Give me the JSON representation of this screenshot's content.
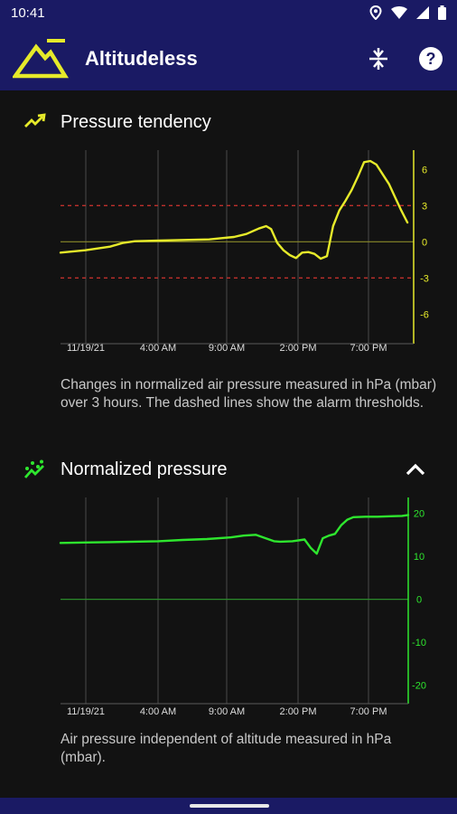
{
  "status_bar": {
    "time": "10:41",
    "icons": [
      "location-icon",
      "wifi-icon",
      "signal-icon",
      "battery-icon"
    ]
  },
  "app_bar": {
    "title": "Altitudeless",
    "actions": [
      "calibrate-icon",
      "help-icon"
    ],
    "color": "#1a1a64",
    "logo_color": "#e6ea2a"
  },
  "tendency": {
    "title": "Pressure tendency",
    "description": "Changes in normalized air pressure measured in hPa (mbar) over 3 hours. The dashed lines show the alarm thresholds.",
    "color": "#e6ea2a",
    "threshold_color": "#c0302c"
  },
  "normalized": {
    "title": "Normalized pressure",
    "description": "Air pressure independent of altitude measured in hPa (mbar).",
    "color": "#2ee62e"
  },
  "chart_data": [
    {
      "type": "line",
      "title": "Pressure tendency",
      "x_tick_labels": [
        "11/19/21",
        "4:00 AM",
        "9:00 AM",
        "2:00 PM",
        "7:00 PM"
      ],
      "y_tick_labels": [
        "6",
        "3",
        "0",
        "-3",
        "-6"
      ],
      "y_ticks": [
        6,
        3,
        0,
        -3,
        -6
      ],
      "ylim": [
        -8,
        7
      ],
      "xlim": [
        0,
        28.5
      ],
      "thresholds": [
        3,
        -3
      ],
      "grid": "vertical",
      "series": [
        {
          "x": [
            0,
            2,
            4,
            5,
            6,
            8,
            10,
            12,
            13,
            14,
            15,
            16,
            16.6,
            17,
            17.5,
            18,
            18.5,
            19,
            19.5,
            20,
            20.5,
            21,
            21.5,
            22,
            22.5,
            23,
            23.5,
            24,
            24.5,
            25,
            25.5,
            26,
            26.5,
            27,
            27.5,
            28
          ],
          "y": [
            -0.9,
            -0.7,
            -0.4,
            -0.1,
            0.05,
            0.1,
            0.15,
            0.2,
            0.3,
            0.4,
            0.65,
            1.1,
            1.3,
            1.05,
            -0.1,
            -0.7,
            -1.1,
            -1.35,
            -0.9,
            -0.85,
            -1.0,
            -1.4,
            -1.2,
            1.3,
            2.6,
            3.4,
            4.3,
            5.4,
            6.6,
            6.7,
            6.4,
            5.6,
            4.8,
            3.7,
            2.6,
            1.6
          ]
        }
      ]
    },
    {
      "type": "line",
      "title": "Normalized pressure",
      "x_tick_labels": [
        "11/19/21",
        "4:00 AM",
        "9:00 AM",
        "2:00 PM",
        "7:00 PM"
      ],
      "y_tick_labels": [
        "20",
        "10",
        "0",
        "-10",
        "-20"
      ],
      "y_ticks": [
        20,
        10,
        0,
        -10,
        -20
      ],
      "ylim": [
        -23,
        22
      ],
      "xlim": [
        0,
        28.5
      ],
      "grid": "vertical",
      "series": [
        {
          "x": [
            0,
            2,
            4,
            6,
            8,
            10,
            12,
            14,
            15,
            16,
            17,
            17.5,
            18,
            19,
            20,
            20.5,
            21,
            21.5,
            22,
            22.5,
            23,
            23.5,
            24,
            25,
            26,
            27,
            28,
            28.5
          ],
          "y": [
            13.1,
            13.2,
            13.3,
            13.4,
            13.5,
            13.8,
            14.0,
            14.4,
            14.8,
            15.0,
            14.0,
            13.5,
            13.4,
            13.5,
            13.9,
            12.0,
            10.6,
            14.2,
            14.8,
            15.2,
            17.2,
            18.5,
            19.1,
            19.2,
            19.2,
            19.3,
            19.4,
            19.6
          ]
        }
      ]
    }
  ]
}
